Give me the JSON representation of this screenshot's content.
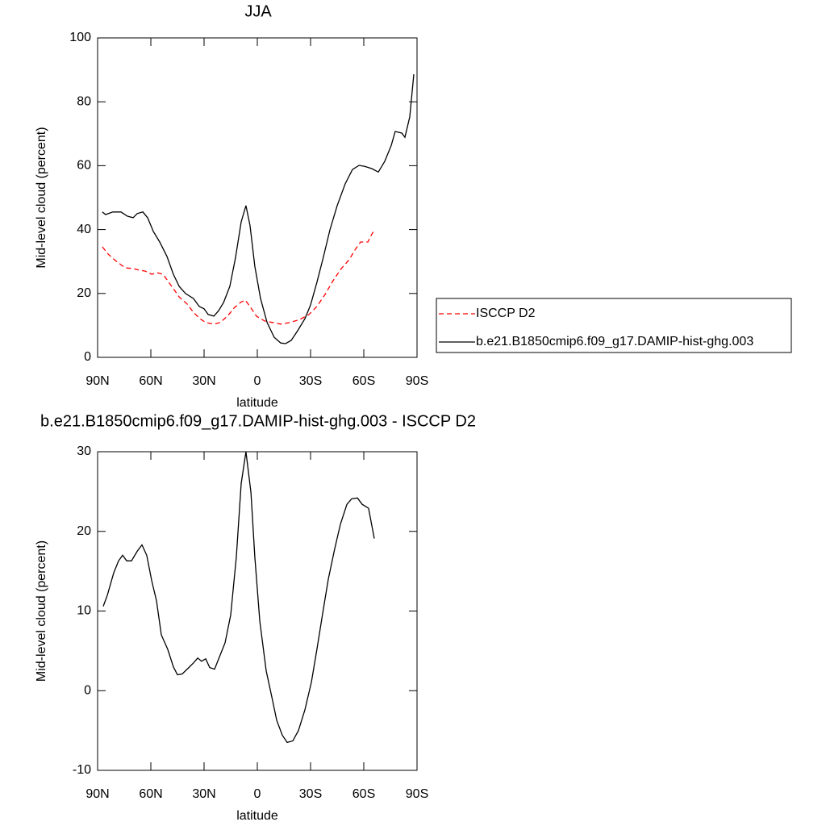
{
  "chart_data": [
    {
      "type": "line",
      "title": "JJA",
      "xlabel": "latitude",
      "ylabel": "Mid-level cloud (percent)",
      "xlim": [
        90,
        -90
      ],
      "xticks": [
        {
          "value": 90,
          "label": "90N"
        },
        {
          "value": 60,
          "label": "60N"
        },
        {
          "value": 30,
          "label": "30N"
        },
        0,
        {
          "value": -30,
          "label": "30S"
        },
        {
          "value": -60,
          "label": "60S"
        },
        {
          "value": -90,
          "label": "90S"
        }
      ],
      "ylim": [
        0,
        100
      ],
      "yticks": [
        0,
        20,
        40,
        60,
        80,
        100
      ],
      "legend": "right",
      "series": [
        {
          "name": "ISCCP D2",
          "color": "#ff0000",
          "line_style": "dashed",
          "x": [
            87.3,
            84,
            80,
            74.5,
            70,
            66.4,
            63.2,
            59.5,
            56.4,
            53.2,
            50.5,
            47.3,
            44,
            39.5,
            36,
            32.3,
            29.1,
            24.5,
            20.9,
            16.8,
            13.2,
            9.5,
            6.8,
            4.1,
            0.5,
            -4.1,
            -8.6,
            -13.2,
            -18.6,
            -24.1,
            -29.1,
            -33.6,
            -38.2,
            -42.7,
            -47.3,
            -51.8,
            -55,
            -58.2,
            -62.3,
            -64.1,
            -65.9
          ],
          "values": [
            34.6,
            32.3,
            30.3,
            28,
            27.8,
            27.3,
            27,
            26,
            26.5,
            26,
            24,
            21.5,
            18.9,
            16.7,
            14.1,
            12.1,
            10.9,
            10.4,
            10.9,
            12.9,
            15.4,
            17.2,
            17.9,
            15.9,
            12.9,
            11.4,
            10.9,
            10.4,
            10.9,
            11.9,
            13.4,
            15.9,
            19.7,
            24,
            27.8,
            30.6,
            33.6,
            36.1,
            36.1,
            38.1,
            39.9
          ]
        },
        {
          "name": "b.e21.B1850cmip6.f09_g17.DAMIP-hist-ghg.003",
          "color": "#000000",
          "line_style": "solid",
          "x": [
            87.3,
            85.5,
            81.4,
            76.8,
            73.2,
            70,
            67.7,
            64.5,
            61.8,
            58.6,
            55,
            50.9,
            47.3,
            44,
            40.5,
            36,
            32.7,
            30,
            27.7,
            24.5,
            21.8,
            19,
            15.5,
            12.3,
            9.1,
            6.4,
            4.1,
            1.4,
            -1.8,
            -5.5,
            -9.5,
            -13.2,
            -15.9,
            -19.1,
            -22.7,
            -26.8,
            -30,
            -33.6,
            -37.3,
            -40.9,
            -45,
            -49.5,
            -53.6,
            -57.3,
            -60.5,
            -64.5,
            -68.2,
            -71.8,
            -75.5,
            -77.7,
            -81.4,
            -83.2,
            -85.9,
            -88.2
          ],
          "values": [
            45.5,
            44.7,
            45.5,
            45.5,
            44.2,
            43.7,
            45,
            45.5,
            43.7,
            39.4,
            36.1,
            31.6,
            26,
            22.2,
            20,
            18.4,
            15.9,
            15.2,
            13.4,
            12.9,
            14.6,
            17.2,
            22.2,
            31.1,
            42.4,
            47.5,
            41.2,
            28.5,
            18.4,
            10.9,
            6.3,
            4.5,
            4.3,
            5.3,
            8.3,
            12.1,
            16.4,
            23.5,
            31.6,
            39.9,
            47.5,
            54.3,
            58.8,
            60.1,
            59.8,
            59.1,
            58,
            61.4,
            66.4,
            70.7,
            70.2,
            68.9,
            75.3,
            88.6
          ]
        }
      ]
    },
    {
      "type": "line",
      "title": "b.e21.B1850cmip6.f09_g17.DAMIP-hist-ghg.003 - ISCCP D2",
      "xlabel": "latitude",
      "ylabel": "Mid-level cloud (percent)",
      "xlim": [
        90,
        -90
      ],
      "xticks": [
        {
          "value": 90,
          "label": "90N"
        },
        {
          "value": 60,
          "label": "60N"
        },
        {
          "value": 30,
          "label": "30N"
        },
        0,
        {
          "value": -30,
          "label": "30S"
        },
        {
          "value": -60,
          "label": "60S"
        },
        {
          "value": -90,
          "label": "90S"
        }
      ],
      "ylim": [
        -10,
        30
      ],
      "yticks": [
        -10,
        0,
        10,
        20,
        30
      ],
      "series": [
        {
          "color": "#000000",
          "line_style": "solid",
          "x": [
            86.8,
            84.5,
            80.9,
            78.2,
            75.9,
            73.6,
            70.9,
            67.7,
            65,
            62.3,
            59.5,
            56.8,
            54.1,
            50.5,
            47.3,
            45,
            42.3,
            39.1,
            35.9,
            33.6,
            31.4,
            29.1,
            26.8,
            24.1,
            21.4,
            18.2,
            15,
            11.8,
            9.1,
            6.4,
            3.6,
            1.4,
            -1.4,
            -5,
            -8.2,
            -10.9,
            -14.1,
            -16.8,
            -20,
            -23.2,
            -26.8,
            -30.5,
            -33.6,
            -36.8,
            -40,
            -43.6,
            -46.8,
            -50.5,
            -53.2,
            -56.4,
            -59.1,
            -62.7,
            -65.9
          ],
          "values": [
            10.6,
            12,
            14.8,
            16.3,
            17,
            16.3,
            16.3,
            17.5,
            18.3,
            17,
            13.8,
            11.3,
            7,
            5.2,
            3,
            2,
            2.1,
            2.8,
            3.5,
            4.1,
            3.7,
            4,
            2.9,
            2.7,
            4.2,
            6,
            9.5,
            16.8,
            26,
            30,
            24.9,
            16.8,
            8.7,
            2.5,
            -0.8,
            -3.7,
            -5.6,
            -6.5,
            -6.3,
            -5,
            -2.4,
            1.1,
            5.2,
            9.7,
            14,
            17.8,
            20.9,
            23.4,
            24.1,
            24.2,
            23.4,
            22.9,
            19.1
          ]
        }
      ]
    }
  ]
}
